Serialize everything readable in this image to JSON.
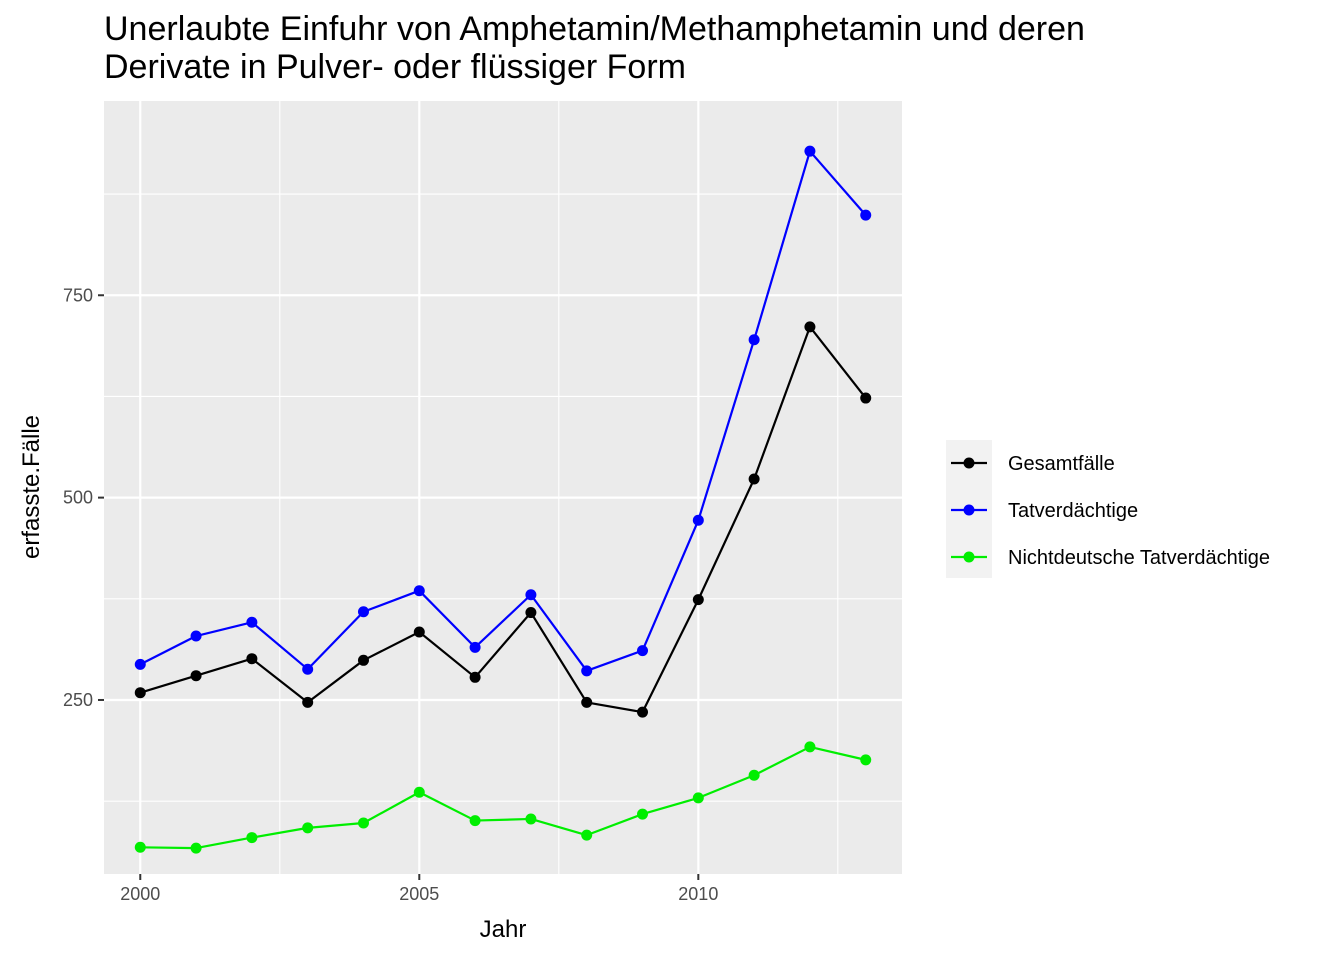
{
  "chart_data": {
    "type": "line",
    "title": "Unerlaubte Einfuhr von Amphetamin/Methamphetamin und deren Derivate in Pulver- oder flüssiger Form",
    "title_lines": [
      "Unerlaubte Einfuhr von Amphetamin/Methamphetamin und deren",
      "Derivate in Pulver- oder flüssiger Form"
    ],
    "xlabel": "Jahr",
    "ylabel": "erfasste.Fälle",
    "x": [
      2000,
      2001,
      2002,
      2003,
      2004,
      2005,
      2006,
      2007,
      2008,
      2009,
      2010,
      2011,
      2012,
      2013
    ],
    "xlim": [
      1999.35,
      2013.65
    ],
    "ylim": [
      35,
      990
    ],
    "x_ticks": [
      2000,
      2005,
      2010
    ],
    "y_ticks": [
      250,
      500,
      750
    ],
    "grid": true,
    "legend_position": "right",
    "series": [
      {
        "name": "Gesamtfälle",
        "color": "#000000",
        "values": [
          259,
          280,
          301,
          247,
          299,
          334,
          278,
          358,
          247,
          235,
          374,
          523,
          711,
          623
        ]
      },
      {
        "name": "Tatverdächtige",
        "color": "#0000ff",
        "values": [
          294,
          329,
          346,
          288,
          359,
          385,
          315,
          380,
          286,
          311,
          472,
          695,
          928,
          849
        ]
      },
      {
        "name": "Nichtdeutsche Tatverdächtige",
        "color": "#00ee00",
        "values": [
          68,
          67,
          80,
          92,
          98,
          136,
          101,
          103,
          83,
          109,
          129,
          157,
          192,
          176
        ]
      }
    ]
  }
}
